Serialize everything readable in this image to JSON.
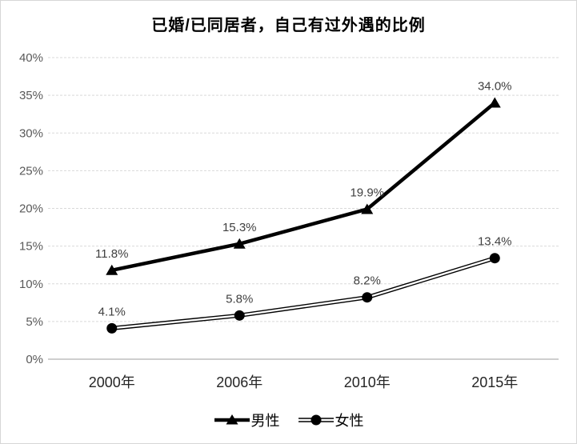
{
  "chart_data": {
    "type": "line",
    "title": "已婚/已同居者，自己有过外遇的比例",
    "categories": [
      "2000年",
      "2006年",
      "2010年",
      "2015年"
    ],
    "series": [
      {
        "name": "男性",
        "values": [
          11.8,
          15.3,
          19.9,
          34.0
        ],
        "labels": [
          "11.8%",
          "15.3%",
          "19.9%",
          "34.0%"
        ],
        "marker": "triangle",
        "line_style": "thick-solid",
        "color": "#000000"
      },
      {
        "name": "女性",
        "values": [
          4.1,
          5.8,
          8.2,
          13.4
        ],
        "labels": [
          "4.1%",
          "5.8%",
          "8.2%",
          "13.4%"
        ],
        "marker": "circle",
        "line_style": "double",
        "color": "#000000"
      }
    ],
    "ylim": [
      0,
      40
    ],
    "ytick_step": 5,
    "ytick_labels": [
      "0%",
      "5%",
      "10%",
      "15%",
      "20%",
      "25%",
      "30%",
      "35%",
      "40%"
    ],
    "grid": true,
    "legend_position": "bottom",
    "colors": {
      "gridline": "#d9d9d9",
      "axis_line": "#bfbfbf",
      "ytick_label": "#595959",
      "xtick_label": "#262626",
      "data_label": "#404040",
      "series": "#000000",
      "background": "#ffffff"
    }
  }
}
